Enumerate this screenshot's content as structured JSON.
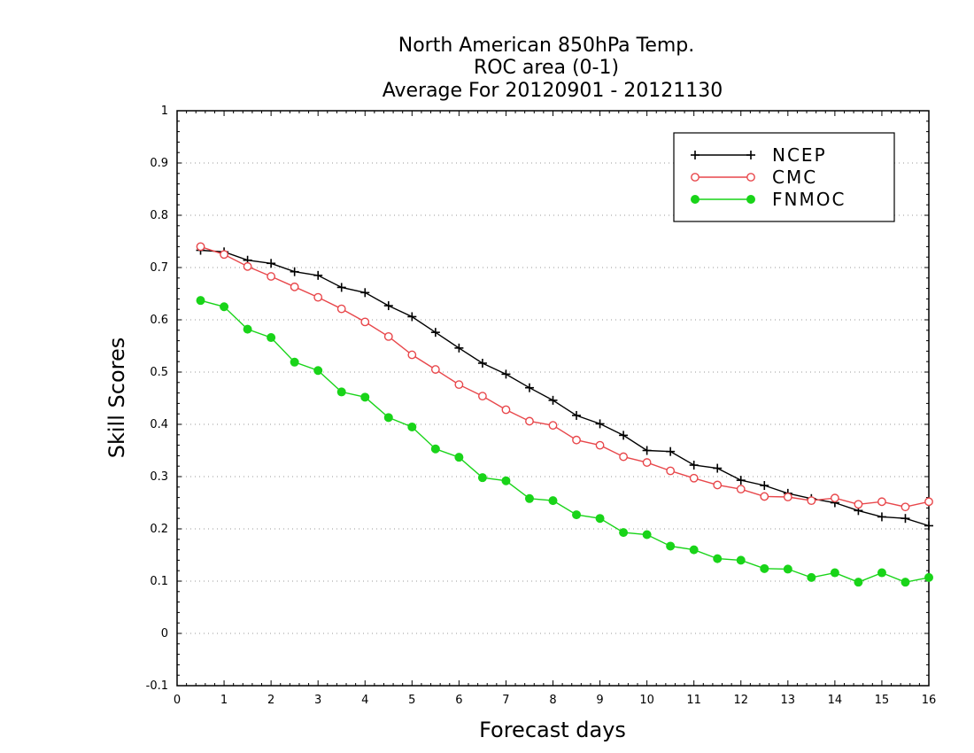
{
  "chart_data": {
    "type": "line",
    "title": [
      "North American 850hPa Temp.",
      "ROC area (0-1)",
      "Average For 20120901 - 20121130"
    ],
    "xlabel": "Forecast days",
    "ylabel": "Skill Scores",
    "xlim": [
      0,
      16
    ],
    "ylim": [
      -0.1,
      1
    ],
    "xticks": [
      0,
      1,
      2,
      3,
      4,
      5,
      6,
      7,
      8,
      9,
      10,
      11,
      12,
      13,
      14,
      15,
      16
    ],
    "yticks": [
      -0.1,
      0,
      0.1,
      0.2,
      0.3,
      0.4,
      0.5,
      0.6,
      0.7,
      0.8,
      0.9,
      1
    ],
    "ytick_labels": [
      "-0.1",
      "0",
      "0.1",
      "0.2",
      "0.3",
      "0.4",
      "0.5",
      "0.6",
      "0.7",
      "0.8",
      "0.9",
      "1"
    ],
    "grid": "horizontal-dotted",
    "legend_position": "top-right",
    "x": [
      0.5,
      1,
      1.5,
      2,
      2.5,
      3,
      3.5,
      4,
      4.5,
      5,
      5.5,
      6,
      6.5,
      7,
      7.5,
      8,
      8.5,
      9,
      9.5,
      10,
      10.5,
      11,
      11.5,
      12,
      12.5,
      13,
      13.5,
      14,
      14.5,
      15,
      15.5,
      16
    ],
    "series": [
      {
        "name": "NCEP",
        "color": "#000000",
        "marker": "plus",
        "values": [
          0.733,
          0.73,
          0.714,
          0.708,
          0.692,
          0.685,
          0.662,
          0.652,
          0.627,
          0.606,
          0.576,
          0.546,
          0.517,
          0.496,
          0.47,
          0.446,
          0.417,
          0.401,
          0.379,
          0.35,
          0.348,
          0.322,
          0.316,
          0.293,
          0.283,
          0.268,
          0.258,
          0.25,
          0.235,
          0.223,
          0.22,
          0.206
        ]
      },
      {
        "name": "CMC",
        "color": "#e8474b",
        "marker": "open-circle",
        "values": [
          0.74,
          0.725,
          0.702,
          0.683,
          0.663,
          0.643,
          0.621,
          0.596,
          0.568,
          0.533,
          0.505,
          0.476,
          0.454,
          0.428,
          0.406,
          0.398,
          0.37,
          0.36,
          0.338,
          0.327,
          0.311,
          0.297,
          0.284,
          0.276,
          0.262,
          0.261,
          0.254,
          0.259,
          0.247,
          0.252,
          0.242,
          0.252
        ]
      },
      {
        "name": "FNMOC",
        "color": "#19d419",
        "marker": "filled-circle",
        "values": [
          0.637,
          0.625,
          0.582,
          0.566,
          0.519,
          0.503,
          0.462,
          0.452,
          0.413,
          0.395,
          0.353,
          0.337,
          0.298,
          0.292,
          0.258,
          0.254,
          0.227,
          0.22,
          0.193,
          0.189,
          0.167,
          0.16,
          0.143,
          0.14,
          0.124,
          0.123,
          0.107,
          0.116,
          0.098,
          0.116,
          0.098,
          0.107
        ]
      }
    ]
  }
}
